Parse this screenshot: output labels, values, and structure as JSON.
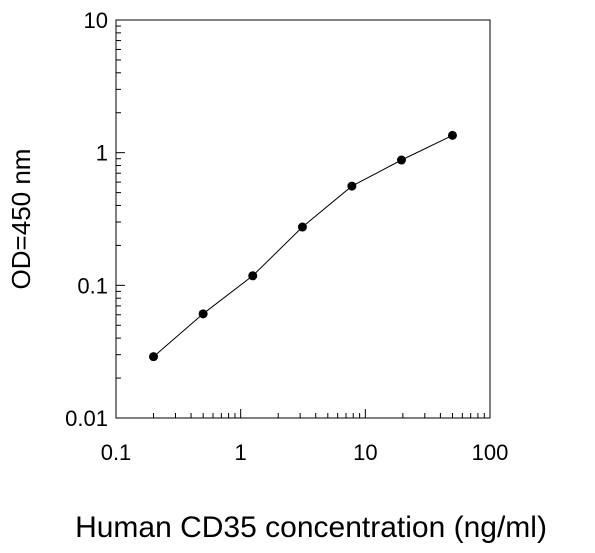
{
  "chart_data": {
    "type": "line",
    "title": "",
    "xlabel": "Human CD35 concentration (ng/ml)",
    "ylabel": "OD=450 nm",
    "x_scale": "log",
    "y_scale": "log",
    "xlim": [
      0.1,
      100
    ],
    "ylim": [
      0.01,
      10
    ],
    "x_ticks": [
      "0.1",
      "1",
      "10",
      "100"
    ],
    "y_ticks": [
      "0.01",
      "0.1",
      "1",
      "10"
    ],
    "grid": false,
    "legend": "none",
    "series": [
      {
        "x": [
          0.2,
          0.5,
          1.25,
          3.13,
          7.8,
          19.5,
          50
        ],
        "y": [
          0.029,
          0.061,
          0.118,
          0.275,
          0.56,
          0.88,
          1.35
        ]
      }
    ]
  },
  "colors": {
    "line": "#000000",
    "marker": "#000000",
    "axis": "#000000"
  }
}
